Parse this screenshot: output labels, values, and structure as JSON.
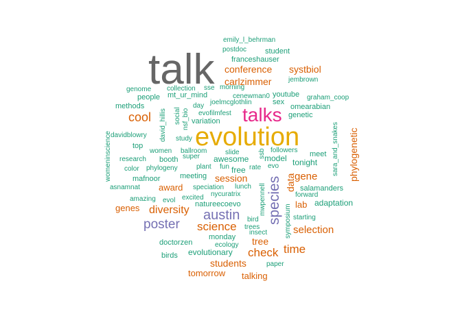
{
  "palette": {
    "teal": "#1b9e77",
    "orange": "#d95f02",
    "purple": "#7570b3",
    "pink": "#e7298a",
    "gold": "#e6ab02",
    "gray": "#666666"
  },
  "words": [
    {
      "text": "talk",
      "color": "gray",
      "size": 62,
      "vertical": false
    },
    {
      "text": "evolution",
      "color": "gold",
      "size": 38,
      "vertical": false
    },
    {
      "text": "talks",
      "color": "pink",
      "size": 28,
      "vertical": false
    },
    {
      "text": "species",
      "color": "purple",
      "size": 21,
      "vertical": true
    },
    {
      "text": "austin",
      "color": "purple",
      "size": 20,
      "vertical": false
    },
    {
      "text": "poster",
      "color": "purple",
      "size": 19,
      "vertical": false
    },
    {
      "text": "cool",
      "color": "orange",
      "size": 18,
      "vertical": false
    },
    {
      "text": "science",
      "color": "orange",
      "size": 17,
      "vertical": false
    },
    {
      "text": "check",
      "color": "orange",
      "size": 17,
      "vertical": false
    },
    {
      "text": "time",
      "color": "orange",
      "size": 17,
      "vertical": false
    },
    {
      "text": "diversity",
      "color": "orange",
      "size": 16,
      "vertical": false
    },
    {
      "text": "conference",
      "color": "orange",
      "size": 14,
      "vertical": false
    },
    {
      "text": "systbiol",
      "color": "orange",
      "size": 14,
      "vertical": false
    },
    {
      "text": "carlzimmer",
      "color": "orange",
      "size": 14,
      "vertical": false
    },
    {
      "text": "gene",
      "color": "orange",
      "size": 15,
      "vertical": false
    },
    {
      "text": "session",
      "color": "orange",
      "size": 14,
      "vertical": false
    },
    {
      "text": "selection",
      "color": "orange",
      "size": 15,
      "vertical": false
    },
    {
      "text": "students",
      "color": "orange",
      "size": 14,
      "vertical": false
    },
    {
      "text": "data",
      "color": "orange",
      "size": 14,
      "vertical": true
    },
    {
      "text": "phylogenetic",
      "color": "orange",
      "size": 14,
      "vertical": true
    },
    {
      "text": "award",
      "color": "orange",
      "size": 13,
      "vertical": false
    },
    {
      "text": "genes",
      "color": "orange",
      "size": 13,
      "vertical": false
    },
    {
      "text": "lab",
      "color": "orange",
      "size": 13,
      "vertical": false
    },
    {
      "text": "tree",
      "color": "orange",
      "size": 14,
      "vertical": false
    },
    {
      "text": "tomorrow",
      "color": "orange",
      "size": 13,
      "vertical": false
    },
    {
      "text": "talking",
      "color": "orange",
      "size": 13,
      "vertical": false
    },
    {
      "text": "emily_l_behrman",
      "color": "teal",
      "size": 10,
      "vertical": false
    },
    {
      "text": "postdoc",
      "color": "teal",
      "size": 10,
      "vertical": false
    },
    {
      "text": "student",
      "color": "teal",
      "size": 11,
      "vertical": false
    },
    {
      "text": "franceshauser",
      "color": "teal",
      "size": 11,
      "vertical": false
    },
    {
      "text": "jembrown",
      "color": "teal",
      "size": 10,
      "vertical": false
    },
    {
      "text": "genome",
      "color": "teal",
      "size": 10,
      "vertical": false
    },
    {
      "text": "collection",
      "color": "teal",
      "size": 10,
      "vertical": false
    },
    {
      "text": "sse",
      "color": "teal",
      "size": 10,
      "vertical": false
    },
    {
      "text": "morning",
      "color": "teal",
      "size": 10,
      "vertical": false
    },
    {
      "text": "people",
      "color": "teal",
      "size": 11,
      "vertical": false
    },
    {
      "text": "mt_ur_mind",
      "color": "teal",
      "size": 11,
      "vertical": false
    },
    {
      "text": "cenewman0",
      "color": "teal",
      "size": 10,
      "vertical": false
    },
    {
      "text": "youtube",
      "color": "teal",
      "size": 11,
      "vertical": false
    },
    {
      "text": "graham_coop",
      "color": "teal",
      "size": 10,
      "vertical": false
    },
    {
      "text": "joelmcglothlin",
      "color": "teal",
      "size": 10,
      "vertical": false
    },
    {
      "text": "sex",
      "color": "teal",
      "size": 11,
      "vertical": false
    },
    {
      "text": "omearabian",
      "color": "teal",
      "size": 11,
      "vertical": false
    },
    {
      "text": "methods",
      "color": "teal",
      "size": 11,
      "vertical": false
    },
    {
      "text": "day",
      "color": "teal",
      "size": 10,
      "vertical": false
    },
    {
      "text": "evofilmfest",
      "color": "teal",
      "size": 10,
      "vertical": false
    },
    {
      "text": "genetic",
      "color": "teal",
      "size": 11,
      "vertical": false
    },
    {
      "text": "womeninscience",
      "color": "teal",
      "size": 10,
      "vertical": true
    },
    {
      "text": "david_hillis",
      "color": "teal",
      "size": 10,
      "vertical": true
    },
    {
      "text": "social",
      "color": "teal",
      "size": 10,
      "vertical": true
    },
    {
      "text": "nsf_bio",
      "color": "teal",
      "size": 10,
      "vertical": true
    },
    {
      "text": "variation",
      "color": "teal",
      "size": 11,
      "vertical": false
    },
    {
      "text": "davidblowry",
      "color": "teal",
      "size": 10,
      "vertical": false
    },
    {
      "text": "study",
      "color": "teal",
      "size": 10,
      "vertical": false
    },
    {
      "text": "sara_and_snakes",
      "color": "teal",
      "size": 10,
      "vertical": true
    },
    {
      "text": "top",
      "color": "teal",
      "size": 11,
      "vertical": false
    },
    {
      "text": "women",
      "color": "teal",
      "size": 10,
      "vertical": false
    },
    {
      "text": "ballroom",
      "color": "teal",
      "size": 10,
      "vertical": false
    },
    {
      "text": "slide",
      "color": "teal",
      "size": 10,
      "vertical": false
    },
    {
      "text": "followers",
      "color": "teal",
      "size": 10,
      "vertical": false
    },
    {
      "text": "meet",
      "color": "teal",
      "size": 11,
      "vertical": false
    },
    {
      "text": "research",
      "color": "teal",
      "size": 10,
      "vertical": false
    },
    {
      "text": "booth",
      "color": "teal",
      "size": 11,
      "vertical": false
    },
    {
      "text": "super",
      "color": "teal",
      "size": 10,
      "vertical": false
    },
    {
      "text": "awesome",
      "color": "teal",
      "size": 12,
      "vertical": false
    },
    {
      "text": "ssb",
      "color": "teal",
      "size": 10,
      "vertical": true
    },
    {
      "text": "model",
      "color": "teal",
      "size": 12,
      "vertical": false
    },
    {
      "text": "tonight",
      "color": "teal",
      "size": 12,
      "vertical": false
    },
    {
      "text": "color",
      "color": "teal",
      "size": 10,
      "vertical": false
    },
    {
      "text": "phylogeny",
      "color": "teal",
      "size": 10,
      "vertical": false
    },
    {
      "text": "plant",
      "color": "teal",
      "size": 10,
      "vertical": false
    },
    {
      "text": "fun",
      "color": "teal",
      "size": 10,
      "vertical": false
    },
    {
      "text": "free",
      "color": "teal",
      "size": 12,
      "vertical": false
    },
    {
      "text": "rate",
      "color": "teal",
      "size": 10,
      "vertical": false
    },
    {
      "text": "evo",
      "color": "teal",
      "size": 10,
      "vertical": false
    },
    {
      "text": "mafnoor",
      "color": "teal",
      "size": 11,
      "vertical": false
    },
    {
      "text": "meeting",
      "color": "teal",
      "size": 11,
      "vertical": false
    },
    {
      "text": "asnamnat",
      "color": "teal",
      "size": 10,
      "vertical": false
    },
    {
      "text": "speciation",
      "color": "teal",
      "size": 10,
      "vertical": false
    },
    {
      "text": "lunch",
      "color": "teal",
      "size": 10,
      "vertical": false
    },
    {
      "text": "mwpennell",
      "color": "teal",
      "size": 10,
      "vertical": true
    },
    {
      "text": "salamanders",
      "color": "teal",
      "size": 11,
      "vertical": false
    },
    {
      "text": "amazing",
      "color": "teal",
      "size": 10,
      "vertical": false
    },
    {
      "text": "evol",
      "color": "teal",
      "size": 10,
      "vertical": false
    },
    {
      "text": "excited",
      "color": "teal",
      "size": 10,
      "vertical": false
    },
    {
      "text": "nycuratrix",
      "color": "teal",
      "size": 10,
      "vertical": false
    },
    {
      "text": "forward",
      "color": "teal",
      "size": 10,
      "vertical": false
    },
    {
      "text": "natureecoevo",
      "color": "teal",
      "size": 11,
      "vertical": false
    },
    {
      "text": "adaptation",
      "color": "teal",
      "size": 12,
      "vertical": false
    },
    {
      "text": "symposium",
      "color": "teal",
      "size": 10,
      "vertical": true
    },
    {
      "text": "starting",
      "color": "teal",
      "size": 10,
      "vertical": false
    },
    {
      "text": "bird",
      "color": "teal",
      "size": 10,
      "vertical": false
    },
    {
      "text": "trees",
      "color": "teal",
      "size": 10,
      "vertical": false
    },
    {
      "text": "insect",
      "color": "teal",
      "size": 10,
      "vertical": false
    },
    {
      "text": "monday",
      "color": "teal",
      "size": 11,
      "vertical": false
    },
    {
      "text": "doctorzen",
      "color": "teal",
      "size": 11,
      "vertical": false
    },
    {
      "text": "ecology",
      "color": "teal",
      "size": 10,
      "vertical": false
    },
    {
      "text": "birds",
      "color": "teal",
      "size": 11,
      "vertical": false
    },
    {
      "text": "evolutionary",
      "color": "teal",
      "size": 12,
      "vertical": false
    },
    {
      "text": "paper",
      "color": "teal",
      "size": 10,
      "vertical": false
    }
  ]
}
